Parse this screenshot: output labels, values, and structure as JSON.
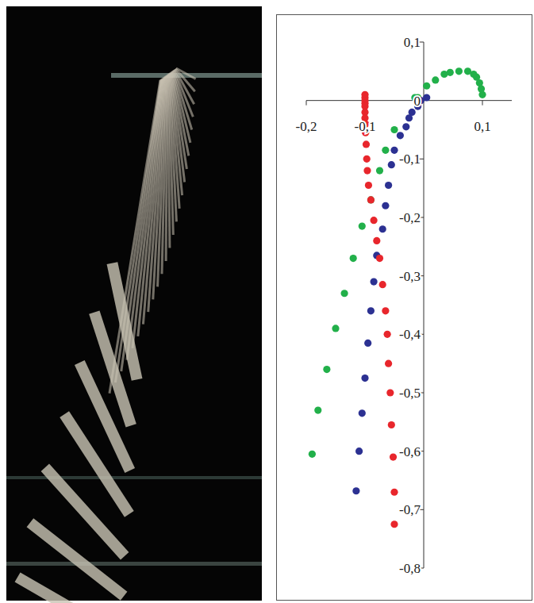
{
  "chart_data": {
    "type": "scatter",
    "xlim": [
      -0.2,
      0.15
    ],
    "ylim": [
      -0.8,
      0.1
    ],
    "xticks": [
      {
        "value": -0.2,
        "label": "-0,2"
      },
      {
        "value": -0.1,
        "label": "-0,1"
      },
      {
        "value": 0.1,
        "label": "0,1"
      }
    ],
    "yticks": [
      {
        "value": 0.1,
        "label": "0,1"
      },
      0,
      {
        "value": -0.1,
        "label": "-0,1"
      },
      {
        "value": -0.2,
        "label": "-0,2"
      },
      {
        "value": -0.3,
        "label": "-0,3"
      },
      {
        "value": -0.4,
        "label": "-0,4"
      },
      {
        "value": -0.5,
        "label": "-0,5"
      },
      {
        "value": -0.6,
        "label": "-0,6"
      },
      {
        "value": -0.7,
        "label": "-0,7"
      },
      {
        "value": -0.8,
        "label": "-0,8"
      }
    ],
    "grid": false,
    "series": [
      {
        "color": "#22b04a",
        "marker": "circle",
        "x": [
          0.1,
          0.098,
          0.095,
          0.09,
          0.085,
          0.075,
          0.06,
          0.045,
          0.035,
          0.02,
          0.005,
          -0.01,
          -0.015,
          -0.05,
          -0.065,
          -0.075,
          -0.09,
          -0.105,
          -0.12,
          -0.135,
          -0.15,
          -0.165,
          -0.18,
          -0.19
        ],
        "values": [
          0.01,
          0.02,
          0.03,
          0.04,
          0.045,
          0.05,
          0.05,
          0.048,
          0.045,
          0.035,
          0.025,
          0.005,
          0.005,
          -0.05,
          -0.085,
          -0.12,
          -0.17,
          -0.215,
          -0.27,
          -0.33,
          -0.39,
          -0.46,
          -0.53,
          -0.605
        ]
      },
      {
        "color": "#2c3192",
        "marker": "circle",
        "x": [
          0.005,
          -0.005,
          -0.01,
          -0.02,
          -0.025,
          -0.03,
          -0.04,
          -0.05,
          -0.055,
          -0.06,
          -0.065,
          -0.07,
          -0.08,
          -0.085,
          -0.09,
          -0.095,
          -0.1,
          -0.105,
          -0.11,
          -0.115
        ],
        "values": [
          0.005,
          0.0,
          -0.01,
          -0.02,
          -0.03,
          -0.045,
          -0.06,
          -0.085,
          -0.11,
          -0.145,
          -0.18,
          -0.22,
          -0.265,
          -0.31,
          -0.36,
          -0.415,
          -0.475,
          -0.535,
          -0.6,
          -0.668
        ]
      },
      {
        "color": "#e8262c",
        "marker": "circle",
        "x": [
          -0.1,
          -0.1,
          -0.1,
          -0.1,
          -0.1,
          -0.1,
          -0.1,
          -0.099,
          -0.099,
          -0.098,
          -0.097,
          -0.096,
          -0.094,
          -0.09,
          -0.085,
          -0.08,
          -0.075,
          -0.07,
          -0.065,
          -0.062,
          -0.06,
          -0.057,
          -0.055,
          -0.052,
          -0.05,
          -0.05
        ],
        "values": [
          0.01,
          0.005,
          0.0,
          -0.005,
          -0.01,
          -0.02,
          -0.03,
          -0.04,
          -0.055,
          -0.075,
          -0.1,
          -0.12,
          -0.145,
          -0.17,
          -0.205,
          -0.24,
          -0.27,
          -0.315,
          -0.36,
          -0.4,
          -0.45,
          -0.5,
          -0.555,
          -0.61,
          -0.67,
          -0.725
        ]
      }
    ]
  }
}
